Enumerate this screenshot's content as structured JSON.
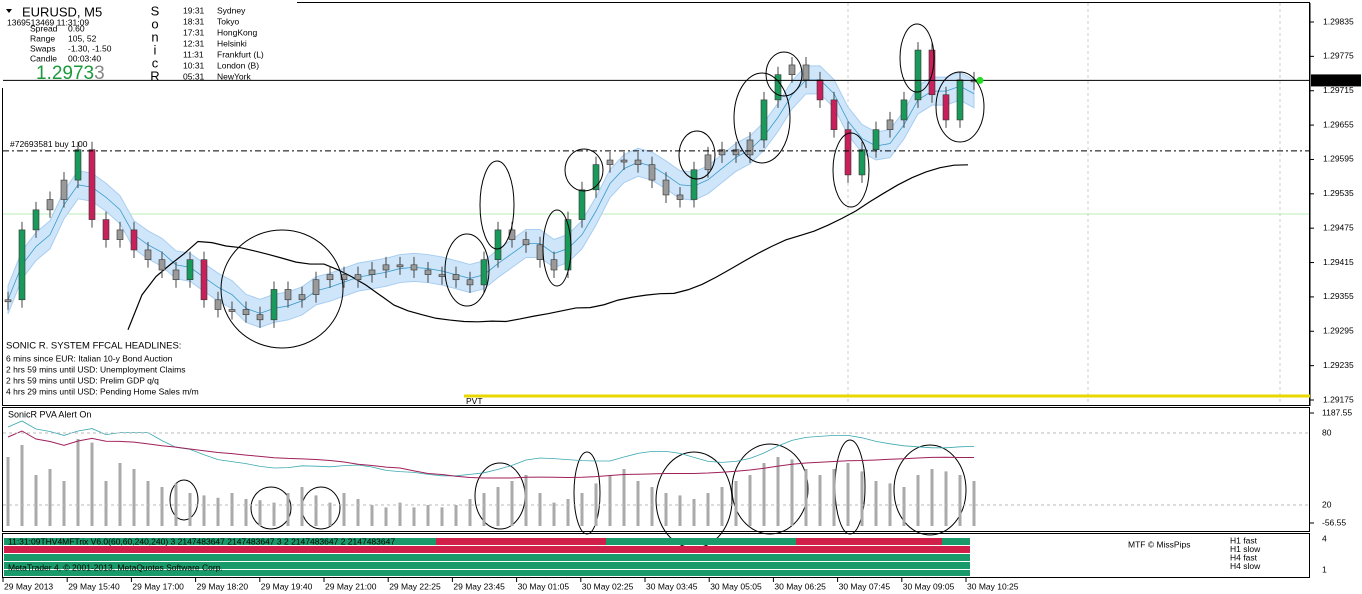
{
  "header": {
    "symbol": "EURUSD, M5",
    "timestamp": "1369513469 11:31:09",
    "rows": [
      [
        "Spread",
        "0.60"
      ],
      [
        "Range",
        "105, 52"
      ],
      [
        "Swaps",
        "-1.30, -1.50"
      ],
      [
        "Candle",
        "00:03:40"
      ]
    ],
    "price_main": "1.2973",
    "price_last": "3",
    "sonic": [
      "S",
      "o",
      "n",
      "i",
      "c",
      "R"
    ],
    "sessions": [
      {
        "time": "19:31",
        "city": "Sydney",
        "color": "#444444"
      },
      {
        "time": "18:31",
        "city": "Tokyo",
        "color": "#444444"
      },
      {
        "time": "17:31",
        "city": "HongKong",
        "color": "#444444"
      },
      {
        "time": "12:31",
        "city": "Helsinki",
        "color": "#1a9a3a"
      },
      {
        "time": "11:31",
        "city": "Frankfurt  (L)",
        "color": "#1a9a3a"
      },
      {
        "time": "10:31",
        "city": "London  (B)",
        "color": "#1a9a3a"
      },
      {
        "time": "05:31",
        "city": "NewYork",
        "color": "#444444"
      }
    ]
  },
  "chart": {
    "closes": [
      1.2935,
      1.29472,
      1.29507,
      1.29525,
      1.29559,
      1.29612,
      1.2949,
      1.29455,
      1.29472,
      1.29437,
      1.2942,
      1.29402,
      1.29385,
      1.2942,
      1.2935,
      1.29333,
      1.29333,
      1.29324,
      1.29315,
      1.29368,
      1.2935,
      1.29359,
      1.29385,
      1.29394,
      1.29385,
      1.29394,
      1.29402,
      1.29411,
      1.29411,
      1.29402,
      1.29394,
      1.29394,
      1.29385,
      1.29376,
      1.2942,
      1.29472,
      1.29455,
      1.29446,
      1.2942,
      1.29402,
      1.2949,
      1.29542,
      1.29586,
      1.29594,
      1.29594,
      1.29586,
      1.29559,
      1.29533,
      1.29525,
      1.29577,
      1.29603,
      1.29612,
      1.29603,
      1.29629,
      1.29699,
      1.29743,
      1.2976,
      1.29734,
      1.29699,
      1.29647,
      1.29568,
      1.29612,
      1.29647,
      1.29664,
      1.29699,
      1.29786,
      1.29708,
      1.29664,
      1.29734,
      1.29733
    ],
    "price_ticks": [
      1.29835,
      1.29775,
      1.29715,
      1.29655,
      1.29595,
      1.29535,
      1.29475,
      1.29415,
      1.29355,
      1.29295,
      1.29235,
      1.29175
    ],
    "current_price": {
      "value": 1.29733,
      "label": "1.29733"
    },
    "order": {
      "label": "#72693581 buy 1.00",
      "price": 1.2961
    },
    "pvt": {
      "label": "PVT",
      "price": 1.29182
    },
    "x_labels": [
      "29 May 2013",
      "29 May 15:40",
      "29 May 17:00",
      "29 May 18:20",
      "29 May 19:40",
      "29 May 21:00",
      "29 May 22:25",
      "29 May 23:45",
      "30 May 01:05",
      "30 May 02:25",
      "30 May 03:45",
      "30 May 05:05",
      "30 May 06:25",
      "30 May 07:45",
      "30 May 09:05",
      "30 May 10:25"
    ]
  },
  "headlines": {
    "title": "SONIC R. SYSTEM  FFCAL HEADLINES:",
    "items": [
      {
        "text": "6 mins since EUR: Italian 10-y Bond Auction",
        "color": "#1010c0"
      },
      {
        "text": "2 hrs 59 mins until USD: Unemployment Claims",
        "color": "#c01010"
      },
      {
        "text": "2 hrs 59 mins until USD: Prelim GDP q/q",
        "color": "#c01010"
      },
      {
        "text": "4 hrs 29 mins until USD: Pending Home Sales m/m",
        "color": "#c01010"
      }
    ]
  },
  "volume_panel": {
    "title": "SonicR PVA  Alert On",
    "volumes": [
      60,
      70,
      45,
      50,
      40,
      75,
      72,
      40,
      55,
      50,
      40,
      35,
      38,
      30,
      28,
      26,
      30,
      25,
      24,
      22,
      30,
      35,
      28,
      22,
      30,
      25,
      20,
      18,
      22,
      18,
      20,
      18,
      20,
      25,
      30,
      35,
      40,
      45,
      30,
      22,
      25,
      30,
      38,
      45,
      50,
      40,
      35,
      30,
      28,
      25,
      30,
      35,
      40,
      45,
      55,
      60,
      58,
      50,
      45,
      50,
      55,
      48,
      40,
      38,
      35,
      45,
      50,
      48,
      45,
      40
    ],
    "ticks": [
      {
        "value": 1187.55,
        "label": "1187.55"
      },
      80,
      20,
      {
        "value": -56.55,
        "label": "-56.55"
      }
    ]
  },
  "trix_panel": {
    "title": "11:31:09THV4MFTrix V6.0(60,60,240,240) 3 2147483647 2147483647 3 2 2147483647 2 2147483647",
    "credit": "MTF © MissPips",
    "legend": [
      "H1 fast",
      "H1 slow",
      "H4 fast",
      "H4 slow"
    ],
    "scale_top": "4",
    "scale_bottom": "1",
    "copyright": "MetaTrader 4, © 2001-2013, MetaQuotes Software Corp."
  }
}
